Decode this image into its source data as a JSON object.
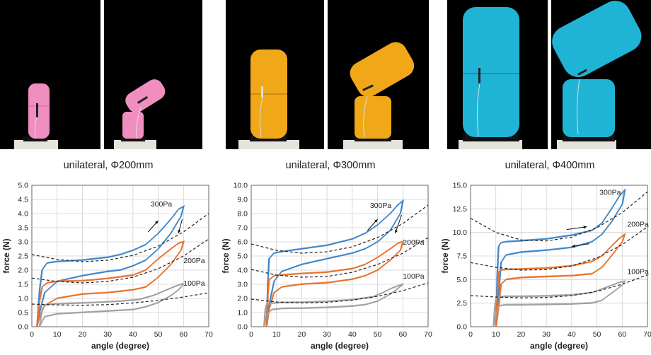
{
  "photos": [
    {
      "name": "photo-200-straight",
      "color": "#f08fbf",
      "bg": "#000000"
    },
    {
      "name": "photo-200-bent",
      "color": "#f08fbf",
      "bg": "#000000"
    },
    {
      "name": "photo-300-straight",
      "color": "#f0a818",
      "bg": "#000000"
    },
    {
      "name": "photo-300-bent",
      "color": "#f0a818",
      "bg": "#000000"
    },
    {
      "name": "photo-400-straight",
      "color": "#1fb4d6",
      "bg": "#000000"
    },
    {
      "name": "photo-400-bent",
      "color": "#1fb4d6",
      "bg": "#000000"
    }
  ],
  "captions": [
    "unilateral, Φ200mm",
    "unilateral, Φ300mm",
    "unilateral, Φ400mm"
  ],
  "colors": {
    "p300": "#3d87c9",
    "p200": "#e8702a",
    "p100": "#a0a0a0",
    "fit": "#222222"
  },
  "chart_data": [
    {
      "type": "line",
      "xlabel": "angle (degree)",
      "ylabel": "force (N)",
      "xlim": [
        0,
        70
      ],
      "ylim": [
        0,
        5
      ],
      "xticks": [
        0,
        10,
        20,
        30,
        40,
        50,
        60,
        70
      ],
      "yticks": [
        "0.0",
        "0.5",
        "1.0",
        "1.5",
        "2.0",
        "2.5",
        "3.0",
        "3.5",
        "4.0",
        "4.5",
        "5.0"
      ],
      "grid": true,
      "series": [
        {
          "name": "300Pa",
          "color_key": "p300",
          "x": [
            2,
            3,
            4,
            6,
            10,
            20,
            30,
            35,
            40,
            45,
            50,
            55,
            58,
            60,
            59,
            55,
            50,
            45,
            40,
            35,
            30,
            20,
            10,
            5,
            3,
            2
          ],
          "y": [
            0.0,
            1.3,
            2.0,
            2.25,
            2.3,
            2.35,
            2.45,
            2.55,
            2.7,
            2.9,
            3.3,
            3.8,
            4.15,
            4.25,
            3.9,
            3.3,
            2.75,
            2.35,
            2.15,
            2.0,
            1.95,
            1.8,
            1.6,
            1.2,
            0.5,
            0.0
          ]
        },
        {
          "name": "200Pa",
          "color_key": "p200",
          "x": [
            2,
            3,
            4,
            6,
            10,
            20,
            30,
            40,
            45,
            50,
            55,
            58,
            60,
            59,
            55,
            50,
            45,
            40,
            30,
            20,
            10,
            5,
            3,
            2
          ],
          "y": [
            0.0,
            0.9,
            1.4,
            1.55,
            1.6,
            1.62,
            1.7,
            1.82,
            2.0,
            2.4,
            2.75,
            2.95,
            3.0,
            2.7,
            2.2,
            1.75,
            1.4,
            1.3,
            1.2,
            1.15,
            1.0,
            0.75,
            0.35,
            0.0
          ]
        },
        {
          "name": "100Pa",
          "color_key": "p100",
          "x": [
            3,
            4,
            5,
            8,
            15,
            25,
            35,
            42,
            48,
            52,
            56,
            59,
            60,
            58,
            55,
            50,
            45,
            40,
            30,
            20,
            10,
            5,
            3
          ],
          "y": [
            0.0,
            0.6,
            0.75,
            0.8,
            0.82,
            0.85,
            0.9,
            0.95,
            1.1,
            1.25,
            1.4,
            1.5,
            1.5,
            1.3,
            1.1,
            0.85,
            0.7,
            0.6,
            0.55,
            0.5,
            0.45,
            0.35,
            0.0
          ]
        }
      ],
      "fits": [
        {
          "x": [
            0,
            10,
            20,
            30,
            40,
            50,
            60,
            70
          ],
          "y": [
            2.55,
            2.38,
            2.3,
            2.35,
            2.52,
            2.85,
            3.35,
            4.0
          ]
        },
        {
          "x": [
            0,
            10,
            20,
            30,
            40,
            50,
            60,
            70
          ],
          "y": [
            1.72,
            1.6,
            1.55,
            1.6,
            1.75,
            2.05,
            2.5,
            3.1
          ]
        },
        {
          "x": [
            0,
            10,
            20,
            30,
            40,
            50,
            60,
            70
          ],
          "y": [
            0.8,
            0.77,
            0.76,
            0.78,
            0.84,
            0.93,
            1.05,
            1.2
          ]
        }
      ],
      "labels": [
        {
          "text": "300Pa",
          "x": 47,
          "y": 4.25
        },
        {
          "text": "200Pa",
          "x": 60,
          "y": 2.25
        },
        {
          "text": "100Pa",
          "x": 60,
          "y": 1.45
        }
      ],
      "arrows": [
        {
          "x1": 46,
          "y1": 3.35,
          "x2": 50,
          "y2": 3.75
        },
        {
          "x1": 59.5,
          "y1": 3.8,
          "x2": 58,
          "y2": 3.3
        }
      ]
    },
    {
      "type": "line",
      "xlabel": "angle (degree)",
      "ylabel": "force (N)",
      "xlim": [
        0,
        70
      ],
      "ylim": [
        0,
        10
      ],
      "xticks": [
        0,
        10,
        20,
        30,
        40,
        50,
        60,
        70
      ],
      "yticks": [
        "0.0",
        "1.0",
        "2.0",
        "3.0",
        "4.0",
        "5.0",
        "6.0",
        "7.0",
        "8.0",
        "9.0",
        "10.0"
      ],
      "grid": true,
      "series": [
        {
          "name": "300Pa",
          "color_key": "p300",
          "x": [
            6,
            6.5,
            7,
            9,
            12,
            20,
            30,
            40,
            45,
            50,
            55,
            58,
            60,
            59,
            55,
            50,
            45,
            40,
            30,
            20,
            12,
            9,
            7,
            6
          ],
          "y": [
            0.0,
            3.0,
            4.8,
            5.2,
            5.3,
            5.5,
            5.75,
            6.2,
            6.6,
            7.2,
            8.0,
            8.6,
            8.9,
            8.0,
            6.8,
            6.0,
            5.5,
            5.2,
            4.8,
            4.4,
            3.9,
            3.2,
            1.5,
            0.0
          ]
        },
        {
          "name": "200Pa",
          "color_key": "p200",
          "x": [
            6,
            6.5,
            7,
            9,
            12,
            20,
            30,
            40,
            45,
            50,
            55,
            58,
            60,
            59,
            55,
            50,
            45,
            40,
            30,
            20,
            12,
            9,
            7,
            6
          ],
          "y": [
            0.0,
            2.2,
            3.3,
            3.6,
            3.65,
            3.75,
            3.85,
            4.1,
            4.4,
            4.9,
            5.5,
            5.9,
            6.0,
            5.4,
            4.7,
            4.0,
            3.6,
            3.35,
            3.1,
            3.0,
            2.8,
            2.4,
            1.2,
            0.0
          ]
        },
        {
          "name": "100Pa",
          "color_key": "p100",
          "x": [
            5,
            5.5,
            6,
            8,
            12,
            20,
            30,
            40,
            48,
            52,
            56,
            59,
            60,
            58,
            55,
            50,
            45,
            40,
            30,
            20,
            12,
            8,
            6,
            5
          ],
          "y": [
            0.0,
            1.2,
            1.55,
            1.65,
            1.7,
            1.72,
            1.78,
            1.9,
            2.1,
            2.4,
            2.75,
            2.95,
            3.0,
            2.7,
            2.3,
            1.8,
            1.55,
            1.45,
            1.35,
            1.3,
            1.28,
            1.2,
            0.8,
            0.0
          ]
        }
      ],
      "fits": [
        {
          "x": [
            0,
            10,
            20,
            30,
            40,
            50,
            60,
            70
          ],
          "y": [
            5.85,
            5.4,
            5.2,
            5.3,
            5.65,
            6.3,
            7.3,
            8.6
          ]
        },
        {
          "x": [
            0,
            10,
            20,
            30,
            40,
            50,
            60,
            70
          ],
          "y": [
            4.05,
            3.65,
            3.5,
            3.55,
            3.85,
            4.4,
            5.2,
            6.3
          ]
        },
        {
          "x": [
            0,
            10,
            20,
            30,
            40,
            50,
            60,
            70
          ],
          "y": [
            1.95,
            1.75,
            1.68,
            1.72,
            1.88,
            2.15,
            2.55,
            3.1
          ]
        }
      ],
      "labels": [
        {
          "text": "300Pa",
          "x": 47,
          "y": 8.4
        },
        {
          "text": "200Pa",
          "x": 60,
          "y": 5.8
        },
        {
          "text": "100Pa",
          "x": 60,
          "y": 3.4
        }
      ],
      "arrows": [
        {
          "x1": 46,
          "y1": 6.8,
          "x2": 50,
          "y2": 7.6
        },
        {
          "x1": 59.5,
          "y1": 7.9,
          "x2": 57,
          "y2": 6.6
        }
      ]
    },
    {
      "type": "line",
      "xlabel": "angle (degree)",
      "ylabel": "force (N)",
      "xlim": [
        0,
        70
      ],
      "ylim": [
        0,
        15
      ],
      "xticks": [
        0,
        10,
        20,
        30,
        40,
        50,
        60,
        70
      ],
      "yticks": [
        "0.0",
        "2.5",
        "5.0",
        "7.5",
        "10.0",
        "12.5",
        "15.0"
      ],
      "grid": true,
      "series": [
        {
          "name": "300Pa",
          "color_key": "p300",
          "x": [
            10,
            10.5,
            11,
            12,
            14,
            20,
            30,
            40,
            48,
            52,
            56,
            59,
            61,
            60,
            56,
            52,
            48,
            40,
            30,
            20,
            14,
            12,
            11,
            10
          ],
          "y": [
            0.0,
            5.5,
            8.5,
            8.9,
            9.0,
            9.1,
            9.3,
            9.7,
            10.2,
            11.0,
            12.6,
            13.9,
            14.5,
            13.0,
            11.2,
            9.8,
            9.0,
            8.4,
            8.1,
            7.9,
            7.6,
            6.8,
            3.5,
            0.0
          ]
        },
        {
          "name": "200Pa",
          "color_key": "p200",
          "x": [
            10,
            10.5,
            11,
            12,
            14,
            20,
            30,
            40,
            48,
            52,
            56,
            59,
            61,
            60,
            56,
            52,
            48,
            40,
            30,
            20,
            14,
            12,
            11,
            10
          ],
          "y": [
            0.0,
            3.5,
            5.8,
            6.0,
            6.05,
            6.1,
            6.2,
            6.45,
            6.9,
            7.5,
            8.6,
            9.4,
            9.8,
            9.0,
            7.6,
            6.3,
            5.6,
            5.4,
            5.3,
            5.2,
            5.0,
            4.5,
            2.0,
            0.0
          ]
        },
        {
          "name": "100Pa",
          "color_key": "p100",
          "x": [
            9,
            9.5,
            10,
            11,
            14,
            20,
            30,
            40,
            48,
            52,
            56,
            59,
            61,
            60,
            56,
            52,
            48,
            40,
            30,
            20,
            14,
            11,
            10,
            9
          ],
          "y": [
            0.0,
            2.0,
            3.0,
            3.15,
            3.2,
            3.2,
            3.25,
            3.35,
            3.6,
            4.0,
            4.4,
            4.7,
            4.8,
            4.4,
            3.6,
            2.8,
            2.5,
            2.4,
            2.35,
            2.3,
            2.3,
            2.2,
            1.2,
            0.0
          ]
        }
      ],
      "fits": [
        {
          "x": [
            0,
            10,
            20,
            30,
            40,
            50,
            60,
            70
          ],
          "y": [
            11.5,
            10.0,
            9.2,
            9.1,
            9.5,
            10.5,
            12.1,
            14.3
          ]
        },
        {
          "x": [
            0,
            10,
            20,
            30,
            40,
            50,
            60,
            70
          ],
          "y": [
            6.8,
            6.3,
            6.0,
            6.05,
            6.45,
            7.3,
            8.7,
            10.6
          ]
        },
        {
          "x": [
            0,
            10,
            20,
            30,
            40,
            50,
            60,
            70
          ],
          "y": [
            3.3,
            3.15,
            3.05,
            3.1,
            3.3,
            3.75,
            4.5,
            5.5
          ]
        }
      ],
      "labels": [
        {
          "text": "300Pa",
          "x": 51,
          "y": 14.0
        },
        {
          "text": "200Pa",
          "x": 62,
          "y": 10.6
        },
        {
          "text": "100Pa",
          "x": 62,
          "y": 5.6
        }
      ],
      "arrows": [
        {
          "x1": 38,
          "y1": 10.3,
          "x2": 46,
          "y2": 10.6
        },
        {
          "x1": 47,
          "y1": 8.8,
          "x2": 40,
          "y2": 8.5
        }
      ]
    }
  ]
}
